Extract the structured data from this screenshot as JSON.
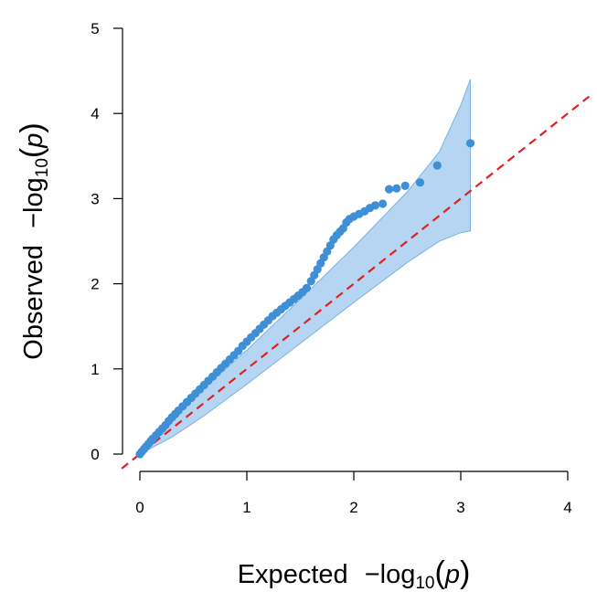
{
  "chart_data": {
    "type": "scatter",
    "title": "",
    "xlabel": {
      "prefix": "Expected",
      "minus": "−",
      "log": "log",
      "base": "10",
      "open": "(",
      "var": "p",
      "close": ")"
    },
    "ylabel": {
      "prefix": "Observed",
      "minus": "−",
      "log": "log",
      "base": "10",
      "open": "(",
      "var": "p",
      "close": ")"
    },
    "xlim": [
      0,
      4
    ],
    "ylim": [
      0,
      5
    ],
    "xticks": [
      "0",
      "1",
      "2",
      "3",
      "4"
    ],
    "yticks": [
      "0",
      "1",
      "2",
      "3",
      "4",
      "5"
    ],
    "grid": false,
    "legend": "none",
    "colors": {
      "points": "#3f8fd6",
      "band": "#9cc7ee",
      "band_edge": "#7fb2e0",
      "reference": "#e02020"
    },
    "reference_line": {
      "slope": 1,
      "intercept": 0,
      "style": "dashed"
    },
    "confidence_band": {
      "x": [
        0.0,
        0.3,
        0.6,
        1.0,
        1.5,
        2.0,
        2.5,
        2.8,
        3.0,
        3.09
      ],
      "upper": [
        0.05,
        0.42,
        0.78,
        1.22,
        1.82,
        2.43,
        3.08,
        3.55,
        4.1,
        4.4
      ],
      "lower": [
        0.0,
        0.2,
        0.45,
        0.82,
        1.3,
        1.78,
        2.25,
        2.5,
        2.6,
        2.62
      ]
    },
    "series": [
      {
        "x": [
          0.0,
          0.02,
          0.04,
          0.06,
          0.08,
          0.1,
          0.12,
          0.15,
          0.18,
          0.21,
          0.24,
          0.27,
          0.3,
          0.33,
          0.36,
          0.4,
          0.44,
          0.48,
          0.52,
          0.56,
          0.6,
          0.64,
          0.68,
          0.72,
          0.76,
          0.8,
          0.84,
          0.88,
          0.92,
          0.96,
          1.0,
          1.04,
          1.08,
          1.12,
          1.16,
          1.2,
          1.24,
          1.28,
          1.32,
          1.36,
          1.4,
          1.44,
          1.48,
          1.52,
          1.56,
          1.6,
          1.63,
          1.66,
          1.69,
          1.72,
          1.75,
          1.78,
          1.81,
          1.84,
          1.87,
          1.9,
          1.93,
          1.96,
          2.0,
          2.05,
          2.1,
          2.15,
          2.2,
          2.27,
          2.33,
          2.4,
          2.48,
          2.62,
          2.78,
          3.09
        ],
        "y": [
          0.0,
          0.03,
          0.06,
          0.09,
          0.12,
          0.15,
          0.18,
          0.22,
          0.26,
          0.3,
          0.34,
          0.39,
          0.43,
          0.47,
          0.51,
          0.56,
          0.61,
          0.66,
          0.71,
          0.76,
          0.81,
          0.86,
          0.91,
          0.96,
          1.01,
          1.06,
          1.11,
          1.16,
          1.21,
          1.27,
          1.32,
          1.37,
          1.42,
          1.47,
          1.52,
          1.57,
          1.62,
          1.66,
          1.7,
          1.74,
          1.78,
          1.82,
          1.86,
          1.9,
          1.95,
          2.03,
          2.1,
          2.17,
          2.24,
          2.31,
          2.38,
          2.45,
          2.52,
          2.57,
          2.61,
          2.65,
          2.72,
          2.76,
          2.79,
          2.82,
          2.85,
          2.89,
          2.92,
          2.94,
          3.11,
          3.12,
          3.15,
          3.19,
          3.39,
          3.65
        ]
      }
    ]
  }
}
